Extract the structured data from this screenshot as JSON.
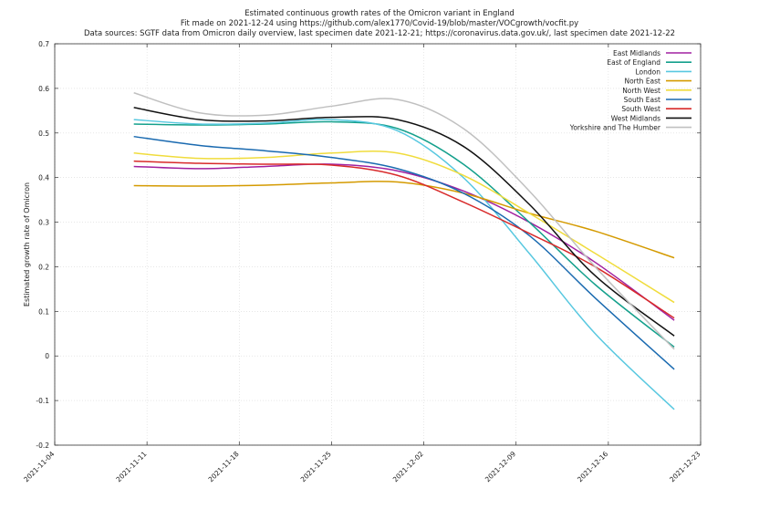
{
  "chart_data": {
    "type": "line",
    "title_lines": [
      "Estimated continuous growth rates of the Omicron variant in England",
      "Fit made on 2021-12-24 using https://github.com/alex1770/Covid-19/blob/master/VOCgrowth/vocfit.py",
      "Data sources: SGTF data from Omicron daily overview, last specimen date 2021-12-21; https://coronavirus.data.gov.uk/, last specimen date 2021-12-22"
    ],
    "xlabel": "",
    "ylabel": "Estimated growth rate of Omicron",
    "x_ticks": [
      "2021-11-04",
      "2021-11-11",
      "2021-11-18",
      "2021-11-25",
      "2021-12-02",
      "2021-12-09",
      "2021-12-16",
      "2021-12-23"
    ],
    "y_ticks": [
      "-0.2",
      "-0.1",
      "0",
      "0.1",
      "0.2",
      "0.3",
      "0.4",
      "0.5",
      "0.6",
      "0.7"
    ],
    "xlim": [
      "2021-11-04",
      "2021-12-23"
    ],
    "ylim": [
      -0.2,
      0.7
    ],
    "grid": true,
    "legend_position": "top-right",
    "x": [
      "2021-11-10",
      "2021-11-15",
      "2021-11-20",
      "2021-11-25",
      "2021-11-30",
      "2021-12-05",
      "2021-12-10",
      "2021-12-15",
      "2021-12-21"
    ],
    "series": [
      {
        "name": "East Midlands",
        "color": "#a020a0",
        "values": [
          0.425,
          0.42,
          0.425,
          0.43,
          0.415,
          0.37,
          0.3,
          0.21,
          0.08
        ]
      },
      {
        "name": "East of England",
        "color": "#14a08c",
        "values": [
          0.52,
          0.518,
          0.52,
          0.525,
          0.51,
          0.43,
          0.3,
          0.16,
          0.02
        ]
      },
      {
        "name": "London",
        "color": "#58c8e0",
        "values": [
          0.53,
          0.52,
          0.522,
          0.53,
          0.505,
          0.4,
          0.23,
          0.05,
          -0.12
        ]
      },
      {
        "name": "North East",
        "color": "#d49a00",
        "values": [
          0.382,
          0.381,
          0.383,
          0.388,
          0.39,
          0.365,
          0.32,
          0.28,
          0.22
        ]
      },
      {
        "name": "North West",
        "color": "#f0dc3c",
        "values": [
          0.455,
          0.443,
          0.445,
          0.455,
          0.455,
          0.405,
          0.32,
          0.23,
          0.12
        ]
      },
      {
        "name": "South East",
        "color": "#1a6ab0",
        "values": [
          0.492,
          0.472,
          0.46,
          0.445,
          0.42,
          0.365,
          0.27,
          0.13,
          -0.03
        ]
      },
      {
        "name": "South West",
        "color": "#d82a2a",
        "values": [
          0.437,
          0.432,
          0.43,
          0.428,
          0.405,
          0.345,
          0.275,
          0.2,
          0.085
        ]
      },
      {
        "name": "West Midlands",
        "color": "#111111",
        "values": [
          0.557,
          0.53,
          0.527,
          0.535,
          0.53,
          0.47,
          0.34,
          0.18,
          0.045
        ]
      },
      {
        "name": "Yorkshire and The Humber",
        "color": "#c0c0c0",
        "values": [
          0.59,
          0.545,
          0.54,
          0.56,
          0.575,
          0.51,
          0.37,
          0.2,
          0.015
        ]
      }
    ]
  }
}
